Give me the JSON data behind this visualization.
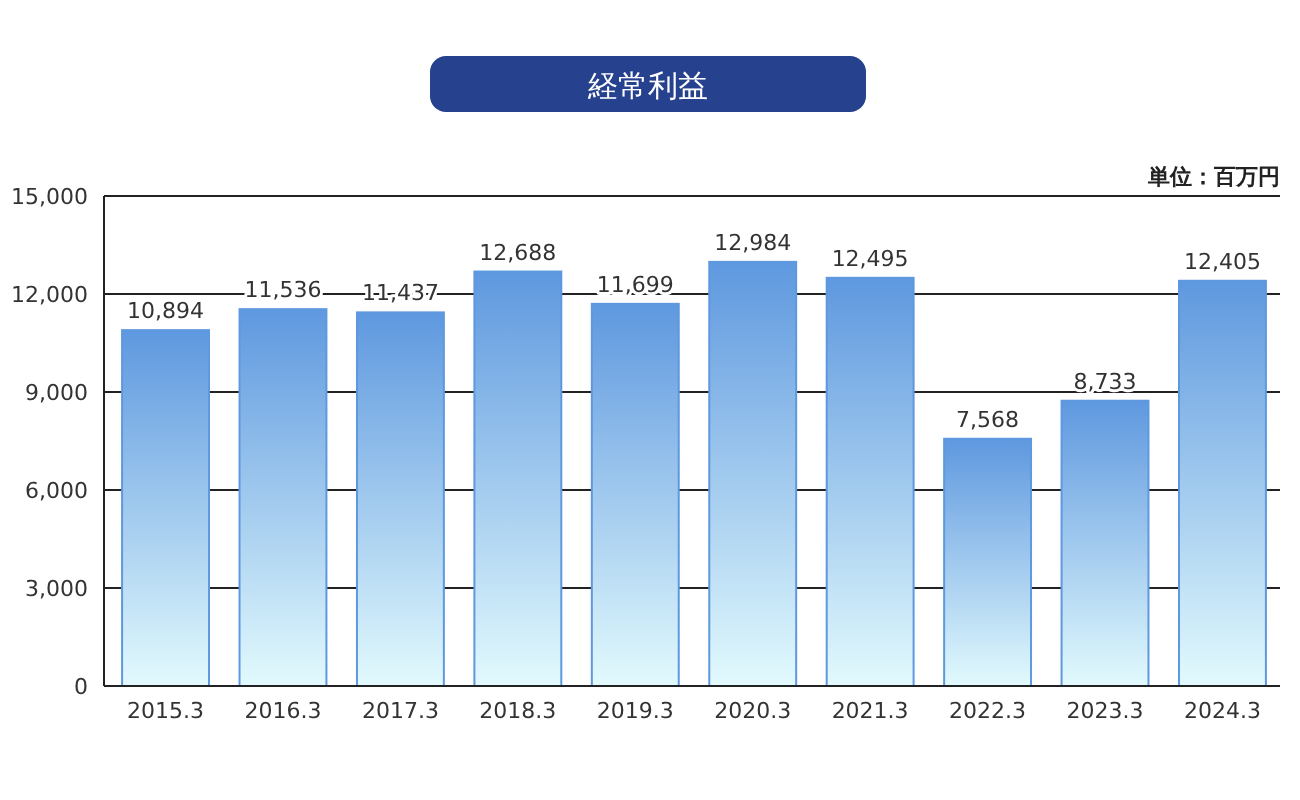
{
  "chart_data": {
    "type": "bar",
    "title": "経常利益",
    "annotations": [
      "単位：百万円"
    ],
    "categories": [
      "2015.3",
      "2016.3",
      "2017.3",
      "2018.3",
      "2019.3",
      "2020.3",
      "2021.3",
      "2022.3",
      "2023.3",
      "2024.3"
    ],
    "values": [
      10894,
      11536,
      11437,
      12688,
      11699,
      12984,
      12495,
      7568,
      8733,
      12405
    ],
    "color": "#5e98df",
    "ylim": [
      0,
      15000
    ],
    "yticks": [
      {
        "value": 0,
        "label": "0"
      },
      {
        "value": 3000,
        "label": "3,000"
      },
      {
        "value": 6000,
        "label": "6,000"
      },
      {
        "value": 9000,
        "label": "9,000"
      },
      {
        "value": 12000,
        "label": "12,000"
      },
      {
        "value": 15000,
        "label": "15,000"
      }
    ],
    "grid": "y",
    "value_labels": [
      "10,894",
      "11,536",
      "11,437",
      "12,688",
      "11,699",
      "12,984",
      "12,495",
      "7,568",
      "8,733",
      "12,405"
    ]
  }
}
